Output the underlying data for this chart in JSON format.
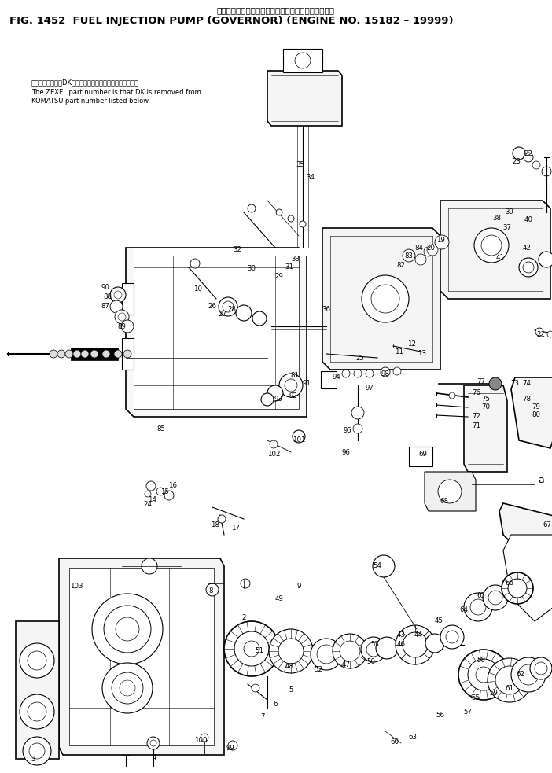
{
  "title_japanese": "フェエルインジェクションポンプ　ガバナ　適用号機",
  "title_english": "FIG. 1452  FUEL INJECTION PUMP (GOVERNOR) (ENGINE NO. 15182 – 19999)",
  "note_line0": "品番のメーカ記号DKを除いたものがゼクセルの品番です。",
  "note_line1": "The ZEXEL part number is that DK is removed from",
  "note_line2": "KOMATSU part number listed below.",
  "label_a": "a",
  "bg_color": "#ffffff",
  "fg_color": "#000000",
  "fig_width": 7.02,
  "fig_height": 9.83,
  "dpi": 100
}
